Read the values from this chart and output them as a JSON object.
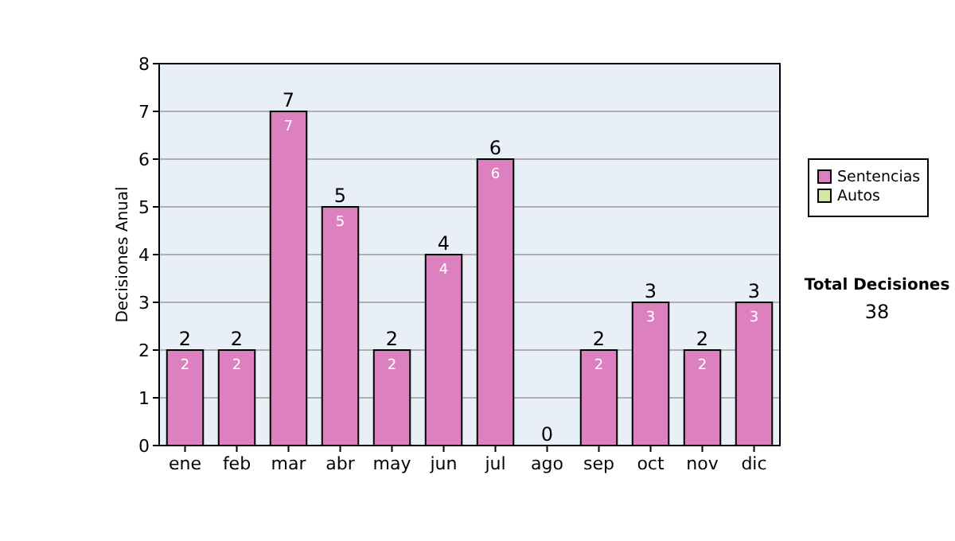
{
  "chart_data": {
    "type": "bar",
    "stacked": true,
    "ylabel": "Decisiones Anual",
    "categories": [
      "ene",
      "feb",
      "mar",
      "abr",
      "may",
      "jun",
      "jul",
      "ago",
      "sep",
      "oct",
      "nov",
      "dic"
    ],
    "series": [
      {
        "name": "Sentencias",
        "color": "#dc80c0",
        "values": [
          2,
          2,
          7,
          5,
          2,
          4,
          6,
          0,
          2,
          3,
          2,
          3
        ],
        "value_labels": [
          "2",
          "2",
          "7",
          "5",
          "2",
          "4",
          "6",
          null,
          "2",
          "3",
          "2",
          "3"
        ]
      },
      {
        "name": "Autos",
        "color": "#d4e8a4",
        "values": [
          0,
          0,
          0,
          0,
          0,
          0,
          0,
          0,
          0,
          0,
          0,
          0
        ]
      }
    ],
    "totals": [
      "2",
      "2",
      "7",
      "5",
      "2",
      "4",
      "6",
      "0",
      "2",
      "3",
      "2",
      "3"
    ],
    "ylim": [
      0,
      8
    ],
    "yticks": [
      0,
      1,
      2,
      3,
      4,
      5,
      6,
      7,
      8
    ],
    "grid": "y",
    "legend": "right",
    "annotations": [
      "Total Decisiones",
      "38"
    ]
  }
}
